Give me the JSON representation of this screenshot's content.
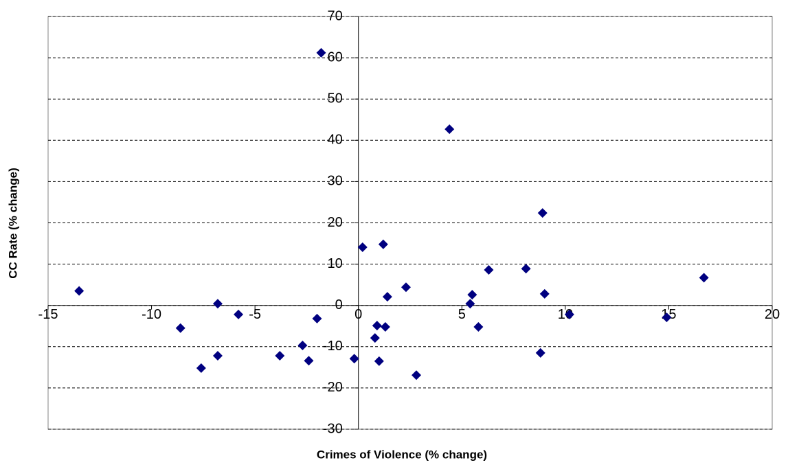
{
  "chart_data": {
    "type": "scatter",
    "x_label": "Crimes of Violence (% change)",
    "y_label": "CC Rate (% change)",
    "xlim": [
      -15,
      20
    ],
    "xticks": [
      -15,
      -10,
      -5,
      0,
      5,
      10,
      15,
      20
    ],
    "ylim": [
      -30,
      70
    ],
    "yticks": [
      -30,
      -20,
      -10,
      0,
      10,
      20,
      30,
      40,
      50,
      60,
      70
    ],
    "grid": true,
    "color": "#000080",
    "x": [
      -13.5,
      -8.6,
      -7.6,
      -6.8,
      -6.8,
      -5.8,
      -3.8,
      -2.7,
      -2.4,
      -2.0,
      -1.8,
      -0.2,
      0.2,
      0.8,
      0.9,
      1.0,
      1.2,
      1.3,
      1.4,
      2.3,
      2.8,
      4.4,
      5.4,
      5.5,
      5.8,
      6.3,
      8.1,
      8.8,
      8.9,
      9.0,
      10.2,
      14.9,
      16.7
    ],
    "y": [
      3.5,
      -5.5,
      -15.2,
      0.4,
      -12.2,
      -2.2,
      -12.2,
      -9.7,
      -13.4,
      -3.2,
      61.2,
      -12.9,
      14.1,
      -7.9,
      -4.9,
      -13.5,
      14.8,
      -5.2,
      2.1,
      4.4,
      -16.9,
      42.7,
      0.4,
      2.6,
      -5.2,
      8.6,
      8.9,
      -11.5,
      22.4,
      2.8,
      -2.2,
      -2.9,
      6.7
    ]
  }
}
